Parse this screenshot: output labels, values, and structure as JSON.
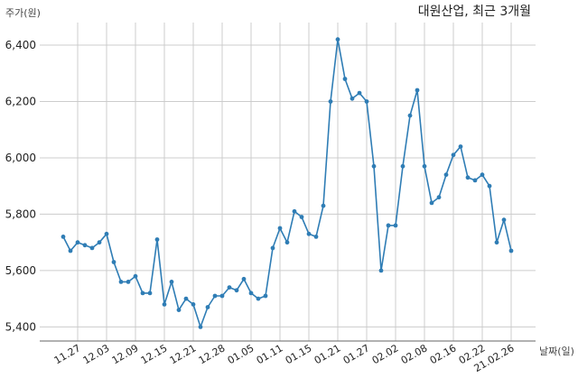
{
  "chart_data": {
    "type": "line",
    "title": "대원산업, 최근 3개월",
    "ylabel": "주가(원)",
    "xlabel": "날짜(일)",
    "ylim": [
      5350,
      6480
    ],
    "yticks": [
      5400,
      5600,
      5800,
      6000,
      6200,
      6400
    ],
    "ytick_labels": [
      "5,400",
      "5,600",
      "5,800",
      "6,000",
      "6,200",
      "6,400"
    ],
    "x_tick_labels": [
      "11.27",
      "12.03",
      "12.09",
      "12.15",
      "12.21",
      "12.28",
      "01.05",
      "01.11",
      "01.15",
      "01.21",
      "01.27",
      "02.02",
      "02.08",
      "02.16",
      "02.22",
      "21.02.26"
    ],
    "x_tick_index": [
      2,
      6,
      10,
      14,
      18,
      22,
      26,
      30,
      34,
      38,
      42,
      46,
      50,
      54,
      58,
      62
    ],
    "grid": true,
    "colors": {
      "line": "#2f7db5",
      "marker": "#2f7db5",
      "grid": "#cccccc",
      "axis": "#666666",
      "text": "#222222"
    },
    "series": [
      {
        "values": [
          5720,
          5670,
          5700,
          5690,
          5680,
          5700,
          5730,
          5630,
          5560,
          5560,
          5580,
          5520,
          5520,
          5710,
          5480,
          5560,
          5460,
          5500,
          5480,
          5400,
          5470,
          5510,
          5510,
          5540,
          5530,
          5570,
          5520,
          5500,
          5510,
          5680,
          5750,
          5700,
          5810,
          5790,
          5730,
          5720,
          5830,
          6200,
          6420,
          6280,
          6210,
          6230,
          6200,
          5970,
          5600,
          5760,
          5760,
          5970,
          6150,
          6240,
          5970,
          5840,
          5860,
          5940,
          6010,
          6040,
          5930,
          5920,
          5940,
          5900,
          5700,
          5780,
          5670
        ]
      }
    ]
  }
}
